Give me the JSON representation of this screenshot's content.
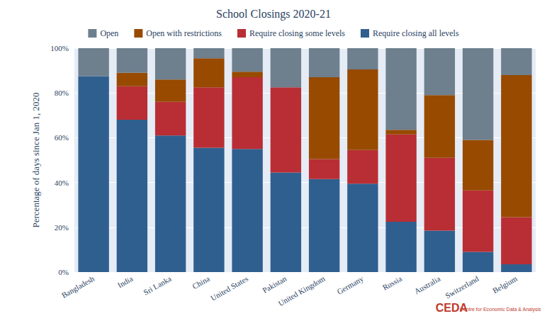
{
  "chart_data": {
    "type": "bar",
    "title": "School Closings 2020-21",
    "y_label": "Percentage of days since Jan 1, 2020",
    "annotations": [
      "CEDA",
      "Centre for Economic Data & Analysis"
    ],
    "categories": [
      "Bangladesh",
      "India",
      "Sri Lanka",
      "China",
      "United States",
      "Pakistan",
      "United Kingdom",
      "Germany",
      "Russia",
      "Australia",
      "Switzerland",
      "Belgium"
    ],
    "stacked": true,
    "grid": true,
    "legend": "top",
    "ylim": [
      0,
      100
    ],
    "yticks": [
      {
        "value": 0,
        "label": "0%"
      },
      {
        "value": 20,
        "label": "20%"
      },
      {
        "value": 40,
        "label": "40%"
      },
      {
        "value": 60,
        "label": "60%"
      },
      {
        "value": 80,
        "label": "80%"
      },
      {
        "value": 100,
        "label": "100%"
      }
    ],
    "series": [
      {
        "name": "Require closing all levels",
        "color": "#2f5f8f",
        "values": [
          87.5,
          68,
          61,
          55.5,
          55,
          44.5,
          41.5,
          39.5,
          22.5,
          18.5,
          9,
          3.5
        ]
      },
      {
        "name": "Require closing some levels",
        "color": "#b92e34",
        "values": [
          0,
          15,
          15,
          27,
          32,
          38,
          9,
          15,
          39,
          32.5,
          27.5,
          21
        ]
      },
      {
        "name": "Open with restrictions",
        "color": "#974a00",
        "values": [
          0,
          6,
          10,
          13,
          2.5,
          0,
          36.5,
          36,
          2,
          28,
          22.5,
          63.5
        ]
      },
      {
        "name": "Open",
        "color": "#6e7f8d",
        "values": [
          12.5,
          11,
          14,
          4.5,
          10.5,
          17.5,
          13,
          9.5,
          36.5,
          21,
          41,
          12
        ]
      }
    ]
  }
}
